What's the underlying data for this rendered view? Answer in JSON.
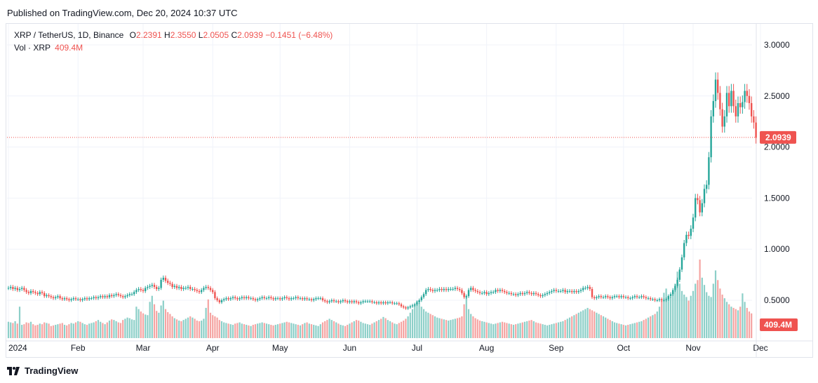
{
  "header": {
    "published": "Published on TradingView.com, Dec 20, 2024 10:37 UTC"
  },
  "legend": {
    "symbol": "XRP / TetherUS, 1D, Binance",
    "o_label": "O",
    "o_value": "2.2391",
    "h_label": "H",
    "h_value": "2.3550",
    "l_label": "L",
    "l_value": "2.0505",
    "c_label": "C",
    "c_value": "2.0939",
    "change": "−0.1451 (−6.48%)",
    "vol_label": "Vol · XRP",
    "vol_value": "409.4M"
  },
  "price_badge": "2.0939",
  "volume_badge": "409.4M",
  "brand": {
    "name": "TradingView"
  },
  "colors": {
    "up": "#26a69a",
    "down": "#ef5350",
    "up_vol": "#8ccfc8",
    "down_vol": "#f5a4a2",
    "grid": "#f0f3fa"
  },
  "chart_data": {
    "type": "candlestick",
    "ylim": [
      0.0,
      3.2
    ],
    "y_ticks": [
      "3.0000",
      "2.5000",
      "2.0000",
      "1.5000",
      "1.0000",
      "0.5000"
    ],
    "y_tick_values": [
      3.0,
      2.5,
      2.0,
      1.5,
      1.0,
      0.5
    ],
    "x_ticks": [
      "2024",
      "Feb",
      "Mar",
      "Apr",
      "May",
      "Jun",
      "Jul",
      "Aug",
      "Sep",
      "Oct",
      "Nov",
      "Dec"
    ],
    "x_tick_days": [
      0,
      31,
      60,
      91,
      121,
      152,
      182,
      213,
      244,
      274,
      305,
      335
    ],
    "last_price": 2.0939,
    "closes": [
      0.62,
      0.63,
      0.61,
      0.62,
      0.6,
      0.61,
      0.62,
      0.6,
      0.58,
      0.57,
      0.59,
      0.58,
      0.57,
      0.56,
      0.58,
      0.57,
      0.54,
      0.55,
      0.54,
      0.53,
      0.52,
      0.53,
      0.54,
      0.52,
      0.51,
      0.52,
      0.51,
      0.5,
      0.51,
      0.52,
      0.51,
      0.51,
      0.5,
      0.51,
      0.52,
      0.51,
      0.52,
      0.52,
      0.53,
      0.52,
      0.53,
      0.54,
      0.53,
      0.54,
      0.53,
      0.55,
      0.54,
      0.55,
      0.56,
      0.55,
      0.54,
      0.53,
      0.54,
      0.55,
      0.56,
      0.56,
      0.58,
      0.6,
      0.61,
      0.6,
      0.59,
      0.62,
      0.63,
      0.64,
      0.65,
      0.63,
      0.61,
      0.62,
      0.7,
      0.72,
      0.69,
      0.67,
      0.66,
      0.63,
      0.64,
      0.62,
      0.63,
      0.61,
      0.62,
      0.62,
      0.63,
      0.61,
      0.61,
      0.6,
      0.59,
      0.58,
      0.6,
      0.62,
      0.63,
      0.62,
      0.6,
      0.58,
      0.52,
      0.5,
      0.48,
      0.5,
      0.51,
      0.52,
      0.51,
      0.52,
      0.53,
      0.52,
      0.51,
      0.52,
      0.53,
      0.52,
      0.53,
      0.52,
      0.52,
      0.51,
      0.5,
      0.51,
      0.52,
      0.53,
      0.52,
      0.52,
      0.53,
      0.52,
      0.51,
      0.52,
      0.52,
      0.51,
      0.52,
      0.53,
      0.52,
      0.51,
      0.52,
      0.52,
      0.53,
      0.52,
      0.52,
      0.51,
      0.52,
      0.51,
      0.51,
      0.5,
      0.51,
      0.52,
      0.52,
      0.52,
      0.5,
      0.49,
      0.48,
      0.49,
      0.5,
      0.49,
      0.49,
      0.48,
      0.49,
      0.5,
      0.49,
      0.48,
      0.49,
      0.48,
      0.49,
      0.48,
      0.47,
      0.48,
      0.49,
      0.49,
      0.49,
      0.49,
      0.48,
      0.48,
      0.47,
      0.48,
      0.47,
      0.48,
      0.47,
      0.48,
      0.48,
      0.47,
      0.47,
      0.47,
      0.46,
      0.44,
      0.43,
      0.42,
      0.43,
      0.44,
      0.45,
      0.46,
      0.48,
      0.5,
      0.53,
      0.56,
      0.6,
      0.61,
      0.6,
      0.59,
      0.6,
      0.6,
      0.61,
      0.6,
      0.61,
      0.6,
      0.61,
      0.61,
      0.61,
      0.62,
      0.61,
      0.6,
      0.57,
      0.53,
      0.54,
      0.6,
      0.62,
      0.6,
      0.59,
      0.58,
      0.57,
      0.57,
      0.58,
      0.56,
      0.57,
      0.58,
      0.58,
      0.6,
      0.59,
      0.6,
      0.59,
      0.58,
      0.57,
      0.57,
      0.56,
      0.56,
      0.55,
      0.56,
      0.57,
      0.56,
      0.57,
      0.58,
      0.57,
      0.56,
      0.57,
      0.56,
      0.55,
      0.54,
      0.55,
      0.56,
      0.57,
      0.58,
      0.59,
      0.6,
      0.59,
      0.59,
      0.59,
      0.6,
      0.58,
      0.59,
      0.59,
      0.58,
      0.59,
      0.58,
      0.59,
      0.6,
      0.62,
      0.62,
      0.63,
      0.61,
      0.53,
      0.52,
      0.53,
      0.54,
      0.53,
      0.53,
      0.54,
      0.53,
      0.52,
      0.53,
      0.54,
      0.54,
      0.53,
      0.54,
      0.53,
      0.53,
      0.52,
      0.52,
      0.53,
      0.54,
      0.53,
      0.53,
      0.54,
      0.53,
      0.52,
      0.52,
      0.51,
      0.51,
      0.5,
      0.5,
      0.51,
      0.5,
      0.5,
      0.51,
      0.54,
      0.56,
      0.6,
      0.64,
      0.7,
      0.8,
      0.92,
      1.06,
      1.14,
      1.13,
      1.2,
      1.31,
      1.5,
      1.48,
      1.36,
      1.45,
      1.59,
      1.63,
      1.9,
      2.3,
      2.45,
      2.66,
      2.53,
      2.37,
      2.2,
      2.3,
      2.53,
      2.4,
      2.55,
      2.4,
      2.3,
      2.43,
      2.39,
      2.44,
      2.55,
      2.5,
      2.43,
      2.3,
      2.24,
      2.09
    ],
    "volumes": [
      270,
      260,
      250,
      280,
      240,
      520,
      220,
      230,
      260,
      250,
      270,
      230,
      210,
      220,
      240,
      230,
      260,
      250,
      240,
      200,
      210,
      220,
      230,
      240,
      250,
      220,
      210,
      230,
      250,
      240,
      260,
      280,
      270,
      250,
      230,
      220,
      240,
      250,
      260,
      280,
      300,
      270,
      250,
      230,
      260,
      290,
      310,
      300,
      280,
      260,
      250,
      300,
      320,
      340,
      330,
      310,
      300,
      520,
      480,
      440,
      410,
      390,
      380,
      600,
      700,
      560,
      450,
      420,
      540,
      620,
      480,
      430,
      400,
      360,
      330,
      310,
      290,
      280,
      300,
      320,
      340,
      360,
      340,
      320,
      290,
      280,
      290,
      320,
      500,
      640,
      420,
      380,
      360,
      340,
      300,
      280,
      260,
      250,
      240,
      230,
      220,
      240,
      250,
      260,
      240,
      230,
      220,
      210,
      200,
      220,
      230,
      240,
      250,
      260,
      250,
      240,
      230,
      220,
      210,
      220,
      230,
      240,
      250,
      260,
      270,
      260,
      250,
      240,
      230,
      220,
      210,
      230,
      250,
      260,
      240,
      230,
      220,
      210,
      200,
      230,
      260,
      280,
      300,
      320,
      300,
      280,
      260,
      240,
      220,
      210,
      200,
      220,
      240,
      260,
      280,
      300,
      290,
      270,
      250,
      240,
      230,
      220,
      240,
      260,
      280,
      300,
      320,
      350,
      330,
      300,
      280,
      260,
      240,
      230,
      250,
      270,
      290,
      320,
      360,
      420,
      480,
      560,
      620,
      580,
      520,
      480,
      440,
      420,
      400,
      380,
      360,
      340,
      330,
      320,
      310,
      300,
      290,
      300,
      310,
      320,
      330,
      340,
      360,
      560,
      700,
      480,
      400,
      360,
      330,
      310,
      290,
      280,
      270,
      260,
      250,
      240,
      230,
      240,
      250,
      260,
      270,
      260,
      250,
      240,
      230,
      220,
      230,
      240,
      250,
      260,
      270,
      280,
      290,
      300,
      280,
      260,
      250,
      240,
      230,
      220,
      210,
      220,
      230,
      240,
      250,
      260,
      270,
      280,
      300,
      320,
      340,
      360,
      380,
      400,
      420,
      440,
      460,
      480,
      500,
      480,
      460,
      440,
      420,
      400,
      380,
      360,
      340,
      320,
      300,
      280,
      260,
      250,
      240,
      230,
      220,
      210,
      220,
      230,
      240,
      250,
      260,
      270,
      280,
      300,
      320,
      340,
      360,
      380,
      400,
      440,
      520,
      620,
      750,
      820,
      700,
      680,
      760,
      900,
      1100,
      900,
      780,
      720,
      680,
      620,
      700,
      780,
      900,
      960,
      1300,
      1000,
      880,
      760,
      700,
      680,
      900,
      1120,
      960,
      820,
      720,
      660,
      600,
      560,
      520,
      500,
      480,
      460,
      520,
      740,
      600,
      500,
      440,
      409
    ]
  }
}
